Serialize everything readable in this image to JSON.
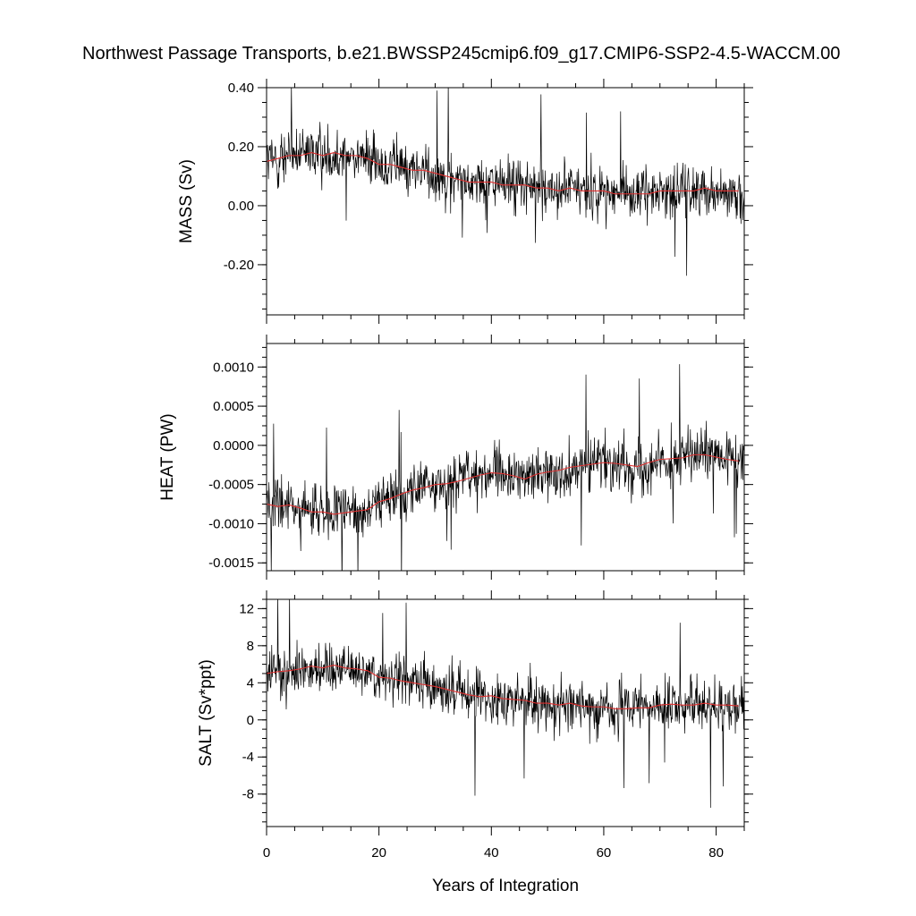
{
  "title": "Northwest Passage Transports, b.e21.BWSSP245cmip6.f09_g17.CMIP6-SSP2-4.5-WACCM.00",
  "chart_data": [
    {
      "type": "line",
      "panel": "mass",
      "ylabel": "MASS (Sv)",
      "xlabel": "",
      "xlim": [
        0,
        85
      ],
      "ylim": [
        -0.37,
        0.4
      ],
      "yticks": [
        0.4,
        0.2,
        0.0,
        -0.2
      ],
      "ytick_labels": [
        "0.40",
        "0.20",
        "0.00",
        "-0.20"
      ],
      "xticks": [
        0,
        20,
        40,
        60,
        80
      ],
      "xtick_labels": [],
      "series": [
        {
          "color": "#000000",
          "kind": "monthly",
          "x_step": 0.0833333,
          "values": []
        },
        {
          "color": "#e03030",
          "kind": "running-mean",
          "x": [
            0,
            2,
            4,
            6,
            8,
            10,
            12,
            14,
            16,
            18,
            20,
            22,
            24,
            26,
            28,
            30,
            32,
            34,
            36,
            38,
            40,
            42,
            44,
            46,
            48,
            50,
            52,
            54,
            56,
            58,
            60,
            62,
            64,
            66,
            68,
            70,
            72,
            74,
            76,
            78,
            80,
            82,
            84
          ],
          "values": [
            0.15,
            0.16,
            0.17,
            0.17,
            0.18,
            0.17,
            0.18,
            0.17,
            0.17,
            0.16,
            0.14,
            0.14,
            0.13,
            0.12,
            0.12,
            0.11,
            0.1,
            0.09,
            0.08,
            0.08,
            0.08,
            0.07,
            0.07,
            0.07,
            0.06,
            0.06,
            0.05,
            0.06,
            0.05,
            0.05,
            0.05,
            0.04,
            0.04,
            0.04,
            0.04,
            0.05,
            0.05,
            0.05,
            0.05,
            0.06,
            0.05,
            0.05,
            0.05
          ]
        }
      ]
    },
    {
      "type": "line",
      "panel": "heat",
      "ylabel": "HEAT (PW)",
      "xlabel": "",
      "xlim": [
        0,
        85
      ],
      "ylim": [
        -0.0016,
        0.0013
      ],
      "yticks": [
        0.001,
        0.0005,
        0.0,
        -0.0005,
        -0.001,
        -0.0015
      ],
      "ytick_labels": [
        "0.0010",
        "0.0005",
        "0.0000",
        "-0.0005",
        "-0.0010",
        "-0.0015"
      ],
      "xticks": [
        0,
        20,
        40,
        60,
        80
      ],
      "xtick_labels": [],
      "series": [
        {
          "color": "#000000",
          "kind": "monthly",
          "x_step": 0.0833333,
          "values": []
        },
        {
          "color": "#e03030",
          "kind": "running-mean",
          "x": [
            0,
            2,
            4,
            6,
            8,
            10,
            12,
            14,
            16,
            18,
            20,
            22,
            24,
            26,
            28,
            30,
            32,
            34,
            36,
            38,
            40,
            42,
            44,
            46,
            48,
            50,
            52,
            54,
            56,
            58,
            60,
            62,
            64,
            66,
            68,
            70,
            72,
            74,
            76,
            78,
            80,
            82,
            84
          ],
          "values": [
            -0.00075,
            -0.00078,
            -0.00076,
            -0.0008,
            -0.00085,
            -0.00085,
            -0.00088,
            -0.00086,
            -0.00084,
            -0.00082,
            -0.00072,
            -0.00068,
            -0.00062,
            -0.00057,
            -0.00054,
            -0.0005,
            -0.00049,
            -0.00046,
            -0.00042,
            -0.00038,
            -0.00035,
            -0.00036,
            -0.00039,
            -0.00043,
            -0.00037,
            -0.00034,
            -0.00032,
            -0.00028,
            -0.00026,
            -0.00024,
            -0.00022,
            -0.00023,
            -0.00025,
            -0.00027,
            -0.00022,
            -0.00018,
            -0.00017,
            -0.00016,
            -0.00012,
            -0.00012,
            -0.00015,
            -0.00018,
            -0.0002
          ]
        }
      ]
    },
    {
      "type": "line",
      "panel": "salt",
      "ylabel": "SALT (Sv*ppt)",
      "xlabel": "Years of Integration",
      "xlim": [
        0,
        85
      ],
      "ylim": [
        -11.5,
        13.0
      ],
      "yticks": [
        12,
        8,
        4,
        0,
        -4,
        -8
      ],
      "ytick_labels": [
        "12",
        "8",
        "4",
        "0",
        "-4",
        "-8"
      ],
      "xticks": [
        0,
        20,
        40,
        60,
        80
      ],
      "xtick_labels": [
        "0",
        "20",
        "40",
        "60",
        "80"
      ],
      "series": [
        {
          "color": "#000000",
          "kind": "monthly",
          "x_step": 0.0833333,
          "values": []
        },
        {
          "color": "#e03030",
          "kind": "running-mean",
          "x": [
            0,
            2,
            4,
            6,
            8,
            10,
            12,
            14,
            16,
            18,
            20,
            22,
            24,
            26,
            28,
            30,
            32,
            34,
            36,
            38,
            40,
            42,
            44,
            46,
            48,
            50,
            52,
            54,
            56,
            58,
            60,
            62,
            64,
            66,
            68,
            70,
            72,
            74,
            76,
            78,
            80,
            82,
            84
          ],
          "values": [
            5.0,
            5.2,
            5.3,
            5.5,
            5.8,
            5.6,
            5.9,
            5.6,
            5.5,
            5.3,
            4.6,
            4.5,
            4.2,
            4.0,
            3.8,
            3.6,
            3.3,
            3.0,
            2.7,
            2.5,
            2.6,
            2.3,
            2.2,
            2.1,
            1.8,
            1.8,
            1.6,
            1.8,
            1.5,
            1.4,
            1.4,
            1.2,
            1.2,
            1.3,
            1.3,
            1.6,
            1.7,
            1.6,
            1.6,
            1.8,
            1.6,
            1.6,
            1.5
          ]
        }
      ]
    }
  ]
}
